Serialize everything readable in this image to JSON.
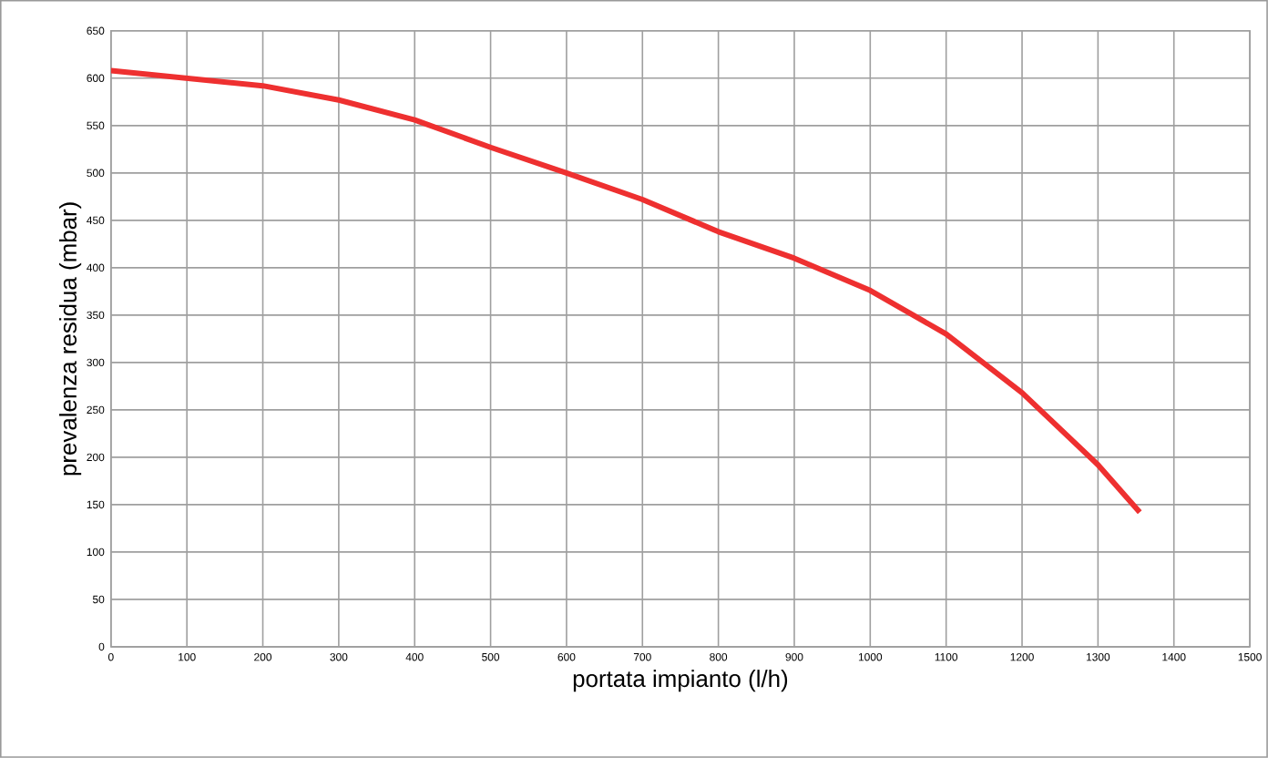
{
  "chart_data": {
    "type": "line",
    "xlabel": "portata impianto (l/h)",
    "ylabel": "prevalenza residua (mbar)",
    "x": [
      0,
      100,
      200,
      300,
      400,
      500,
      600,
      700,
      800,
      900,
      1000,
      1100,
      1200,
      1300,
      1355
    ],
    "series": [
      {
        "color": "#ee3030",
        "values": [
          608,
          600,
          592,
          577,
          556,
          527,
          500,
          472,
          438,
          410,
          376,
          330,
          268,
          192,
          142
        ]
      }
    ],
    "xlim": [
      0,
      1500
    ],
    "xticks": [
      0,
      100,
      200,
      300,
      400,
      500,
      600,
      700,
      800,
      900,
      1000,
      1100,
      1200,
      1300,
      1400,
      1500
    ],
    "ylim": [
      0,
      650
    ],
    "yticks": [
      0,
      50,
      100,
      150,
      200,
      250,
      300,
      350,
      400,
      450,
      500,
      550,
      600,
      650
    ],
    "grid": true,
    "marker": "none",
    "line_style": "solid"
  }
}
